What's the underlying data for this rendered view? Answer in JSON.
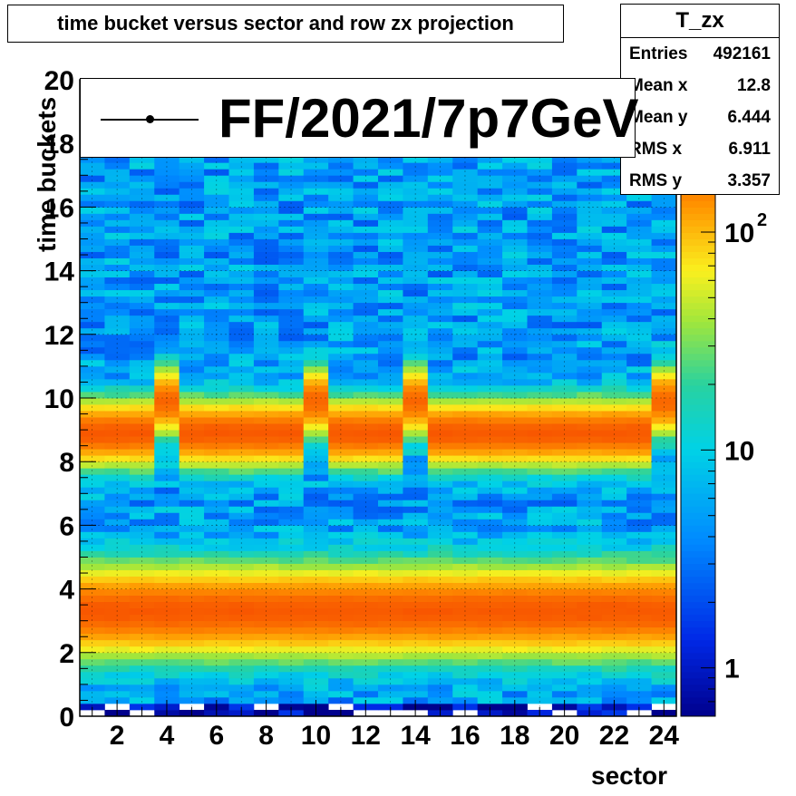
{
  "chart_data": {
    "type": "heatmap",
    "title": "time bucket versus sector and row zx projection",
    "xlabel": "sector",
    "ylabel": "time buckets",
    "xlim": [
      0.5,
      24.5
    ],
    "ylim": [
      0,
      20
    ],
    "x_ticks": [
      "2",
      "4",
      "6",
      "8",
      "10",
      "12",
      "14",
      "16",
      "18",
      "20",
      "22",
      "24"
    ],
    "y_ticks": [
      "0",
      "2",
      "4",
      "6",
      "8",
      "10",
      "12",
      "14",
      "16",
      "18",
      "20"
    ],
    "z_scale": "log",
    "z_range": [
      0.6,
      500
    ],
    "z_ticks": [
      {
        "value": 1,
        "label": "1",
        "exp": ""
      },
      {
        "value": 10,
        "label": "10",
        "exp": ""
      },
      {
        "value": 100,
        "label": "10",
        "exp": "2"
      }
    ],
    "colormap": "rainbow",
    "grid": true,
    "n_x_bins": 24,
    "n_y_bins": 100,
    "bands": [
      {
        "name": "lower",
        "center": 3.3,
        "sigma": 0.75,
        "peak": 200
      },
      {
        "name": "upper",
        "center": 8.9,
        "sigma": 0.55,
        "peak": 200
      },
      {
        "name": "upper-shifted",
        "center": 9.9,
        "sigma": 0.55,
        "peak": 180,
        "sectors": [
          4,
          10,
          14,
          24
        ]
      }
    ],
    "background_level": 5,
    "legend": {
      "entries": [
        "FF/2021/7p7GeV"
      ],
      "placement": "top"
    },
    "stats": {
      "name": "T_zx",
      "rows": [
        {
          "label": "Entries",
          "value": "492161"
        },
        {
          "label": "Mean x",
          "value": "12.8"
        },
        {
          "label": "Mean y",
          "value": "6.444"
        },
        {
          "label": "RMS x",
          "value": "6.911"
        },
        {
          "label": "RMS y",
          "value": "3.357"
        }
      ]
    }
  }
}
